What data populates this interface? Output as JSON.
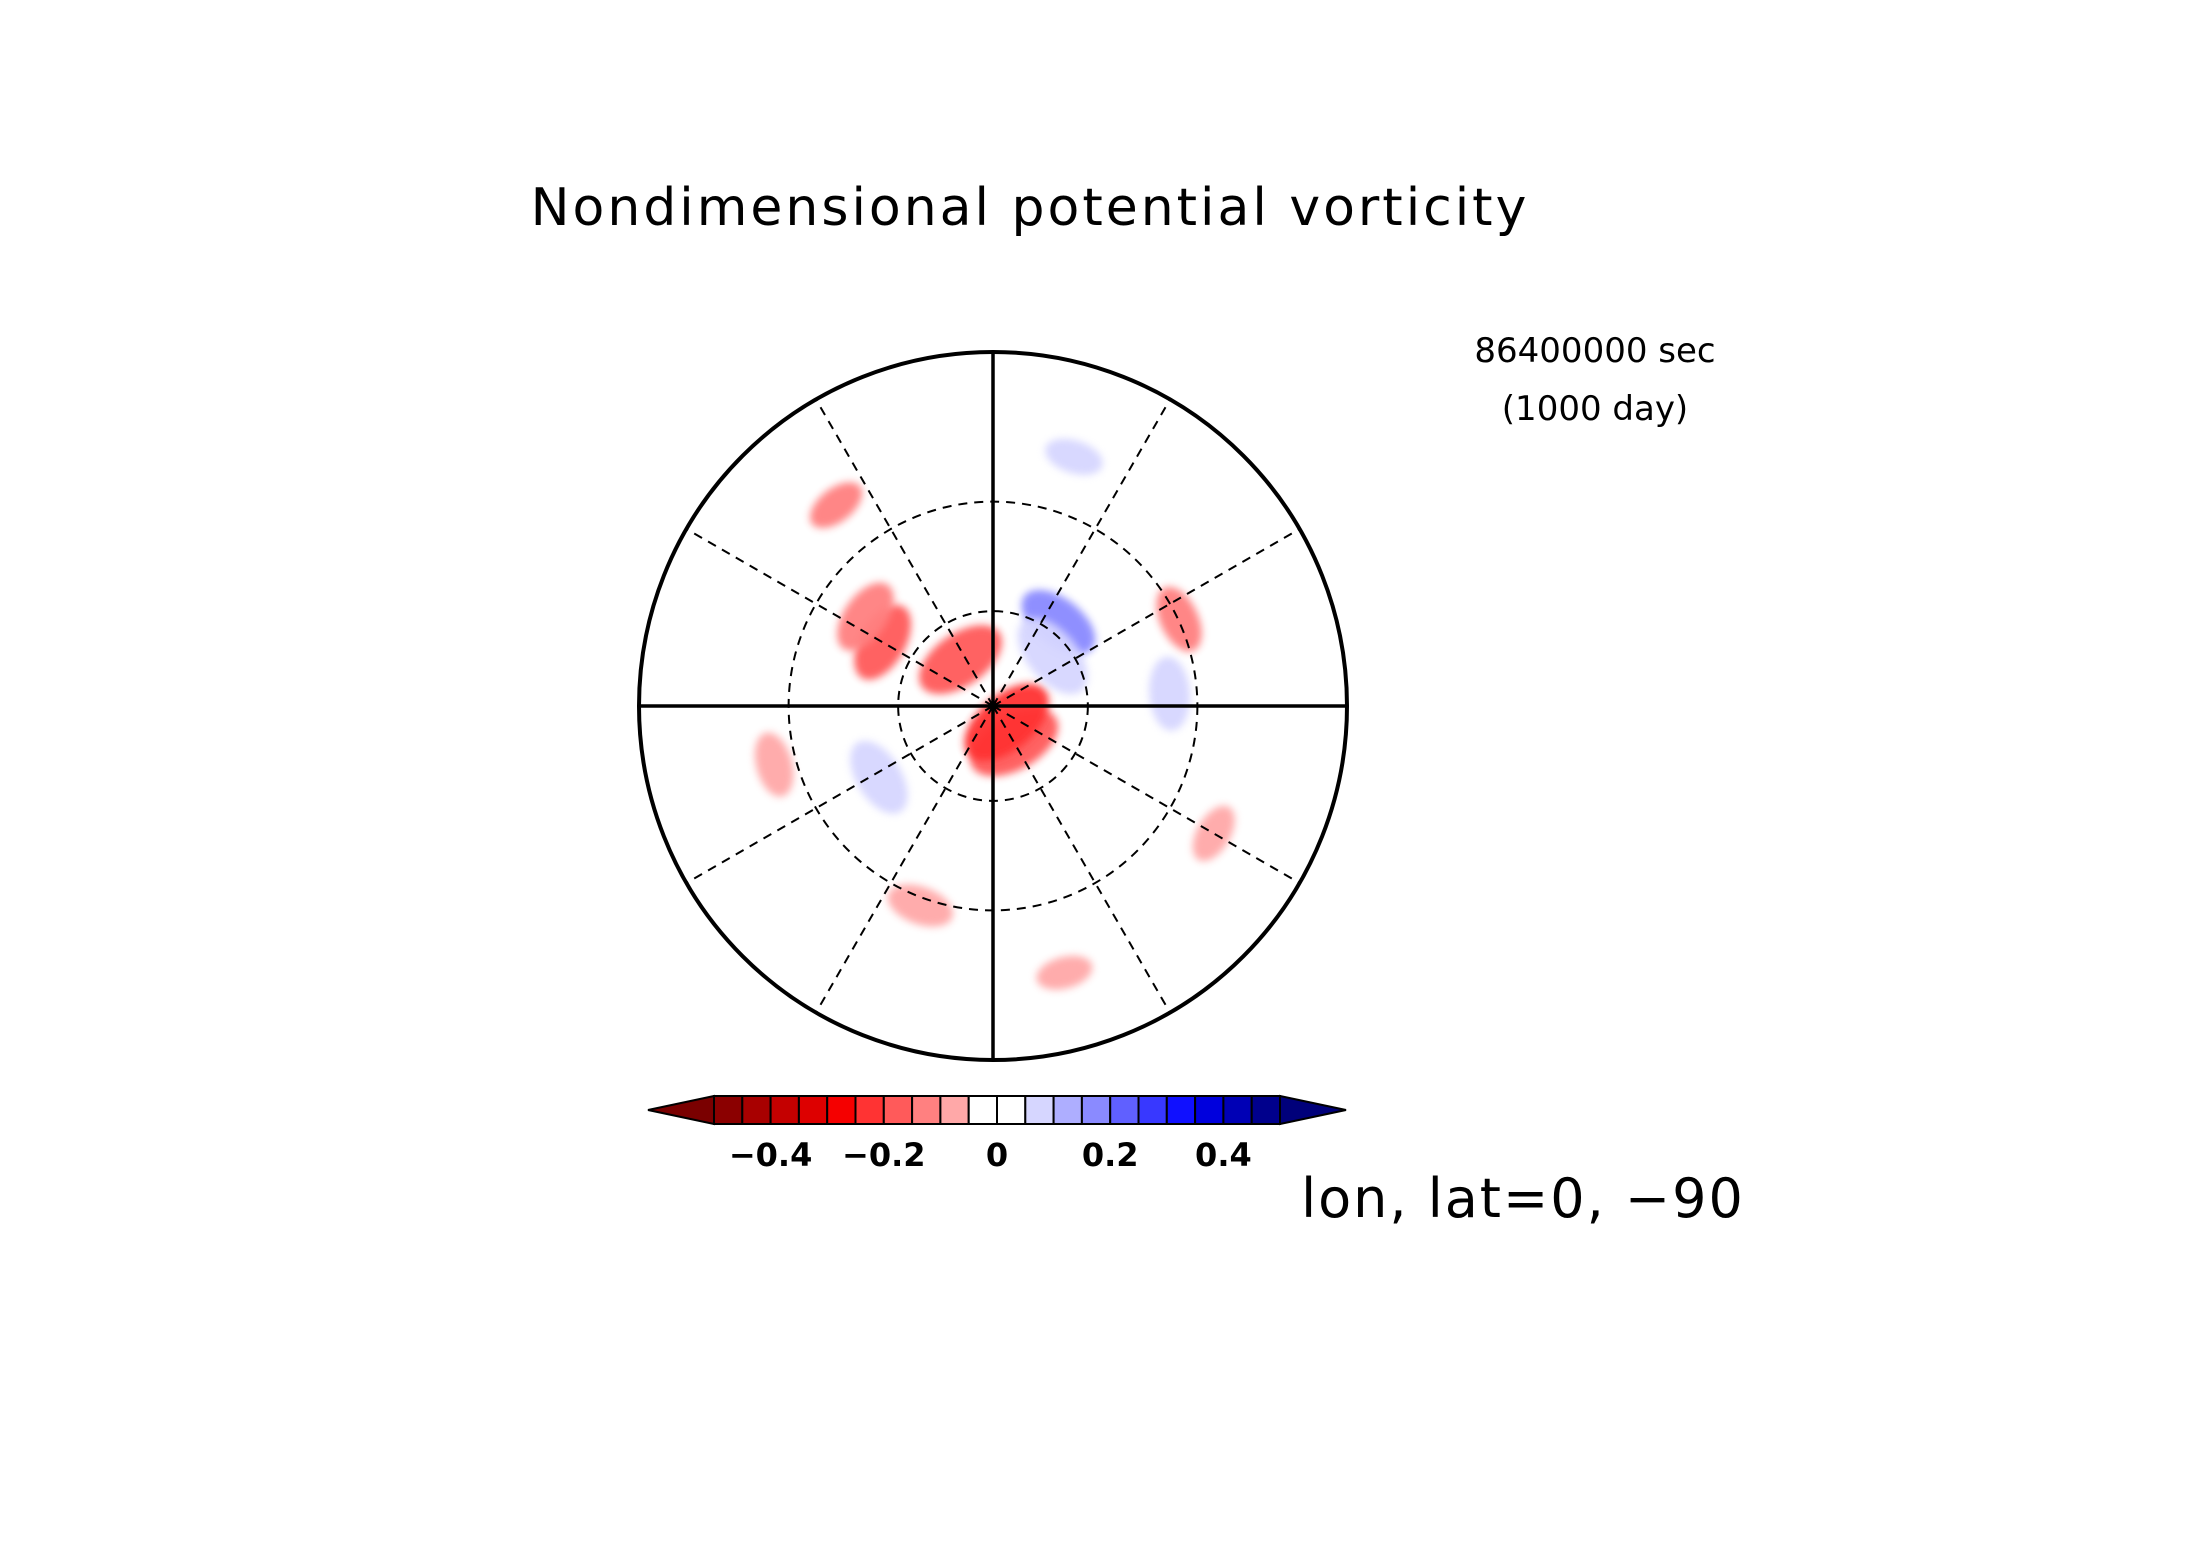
{
  "chart_data": {
    "type": "heatmap",
    "title": "Nondimensional potential vorticity",
    "time_label": "86400000 sec",
    "time_label_day": "(1000 day)",
    "axis_label": "lon, lat=0, −90",
    "projection": "south polar stereographic",
    "center": {
      "lon": 0,
      "lat": -90
    },
    "grid": {
      "meridian_step_deg": 30,
      "latitude_circles_deg": [
        -30,
        -60
      ],
      "bold_meridians_deg": [
        0,
        90,
        180,
        270
      ]
    },
    "colorbar": {
      "orientation": "horizontal",
      "extend": "both",
      "range": [
        -0.5,
        0.5
      ],
      "step": 0.05,
      "tick_values": [
        -0.4,
        -0.2,
        0,
        0.2,
        0.4
      ],
      "tick_labels": [
        "−0.4",
        "−0.2",
        "0",
        "0.2",
        "0.4"
      ],
      "under_color": "#7a0000",
      "over_color": "#00007a",
      "colors": [
        "#8b0000",
        "#a80000",
        "#c40000",
        "#dd0000",
        "#f50000",
        "#ff3333",
        "#ff5a5a",
        "#ff8080",
        "#ffa8a8",
        "#ffffff",
        "#ffffff",
        "#d6d6ff",
        "#aeaeff",
        "#8a8aff",
        "#6060ff",
        "#3838ff",
        "#1010ff",
        "#0000dd",
        "#0000b5",
        "#00008c"
      ]
    },
    "anomalies": [
      {
        "r": 0.12,
        "theta": 300,
        "value": -0.15
      },
      {
        "r": 0.06,
        "theta": 310,
        "value": -0.25
      },
      {
        "r": 0.3,
        "theta": 52,
        "value": 0.2
      },
      {
        "r": 0.22,
        "theta": 40,
        "value": 0.1
      },
      {
        "r": 0.16,
        "theta": 125,
        "value": -0.15
      },
      {
        "r": 0.36,
        "theta": 150,
        "value": -0.15
      },
      {
        "r": 0.44,
        "theta": 145,
        "value": -0.12
      },
      {
        "r": 0.38,
        "theta": 212,
        "value": 0.1
      },
      {
        "r": 0.58,
        "theta": 25,
        "value": -0.12
      },
      {
        "r": 0.72,
        "theta": 330,
        "value": -0.1
      },
      {
        "r": 0.64,
        "theta": 195,
        "value": -0.1
      },
      {
        "r": 0.72,
        "theta": 128,
        "value": -0.12
      },
      {
        "r": 0.78,
        "theta": 285,
        "value": -0.1
      },
      {
        "r": 0.5,
        "theta": 4,
        "value": 0.1
      },
      {
        "r": 0.74,
        "theta": 72,
        "value": 0.08
      },
      {
        "r": 0.6,
        "theta": 250,
        "value": -0.1
      }
    ]
  }
}
